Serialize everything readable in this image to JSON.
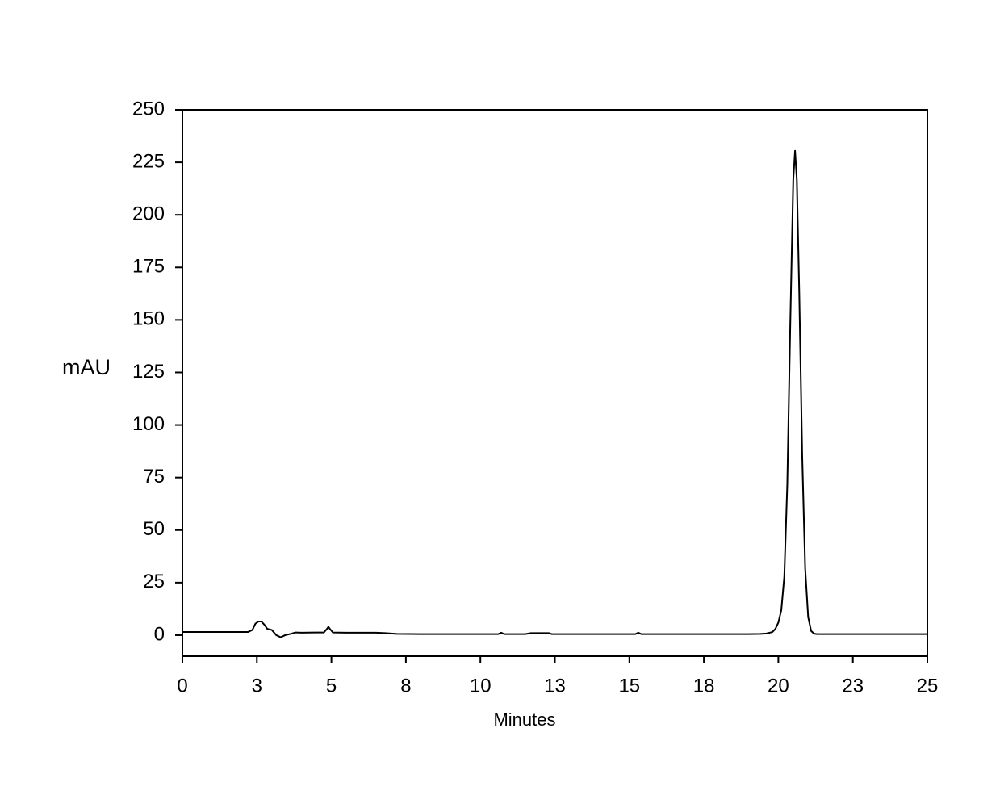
{
  "chart_data": {
    "type": "line",
    "ylabel": "mAU",
    "xlabel": "Minutes",
    "color": "#000000",
    "x": [
      0,
      2.2,
      2.35,
      2.45,
      2.55,
      2.65,
      2.75,
      2.85,
      3.0,
      3.15,
      3.3,
      3.45,
      3.6,
      3.8,
      4.0,
      4.5,
      4.75,
      4.85,
      4.9,
      4.95,
      5.05,
      5.5,
      6.5,
      6.8,
      7.2,
      8,
      10,
      10.6,
      10.7,
      10.8,
      11.5,
      11.7,
      12.3,
      12.4,
      13,
      15,
      15.2,
      15.3,
      15.4,
      16,
      18,
      19.0,
      19.4,
      19.6,
      19.8,
      19.9,
      20.0,
      20.1,
      20.2,
      20.3,
      20.4,
      20.5,
      20.56,
      20.62,
      20.7,
      20.8,
      20.9,
      21.0,
      21.1,
      21.2,
      21.3,
      21.4,
      21.6,
      22,
      25
    ],
    "values": [
      1.5,
      1.5,
      2.5,
      5.5,
      6.5,
      6.5,
      5,
      3,
      2.5,
      0,
      -1,
      0,
      0.5,
      1.3,
      1.2,
      1.3,
      1.3,
      3,
      4,
      3,
      1.3,
      1.2,
      1.2,
      1,
      0.6,
      0.5,
      0.5,
      0.5,
      1.2,
      0.5,
      0.5,
      1,
      1,
      0.5,
      0.5,
      0.5,
      0.5,
      1.2,
      0.5,
      0.5,
      0.5,
      0.5,
      0.6,
      0.8,
      1.5,
      3,
      6,
      12,
      28,
      72,
      148,
      216.7,
      230.5,
      216.7,
      164,
      85.4,
      31.6,
      8.6,
      2,
      0.7,
      0.5,
      0.5,
      0.5,
      0.5,
      0.5
    ],
    "xlim": [
      0,
      25
    ],
    "xticks": [
      0,
      {
        "value": 2.5,
        "label": "3"
      },
      5,
      {
        "value": 7.5,
        "label": "8"
      },
      10,
      {
        "value": 12.5,
        "label": "13"
      },
      15,
      {
        "value": 17.5,
        "label": "18"
      },
      20,
      {
        "value": 22.5,
        "label": "23"
      },
      25
    ],
    "ylim": [
      -10,
      250
    ],
    "yticks": [
      0,
      25,
      50,
      75,
      100,
      125,
      150,
      175,
      200,
      225,
      250
    ]
  }
}
